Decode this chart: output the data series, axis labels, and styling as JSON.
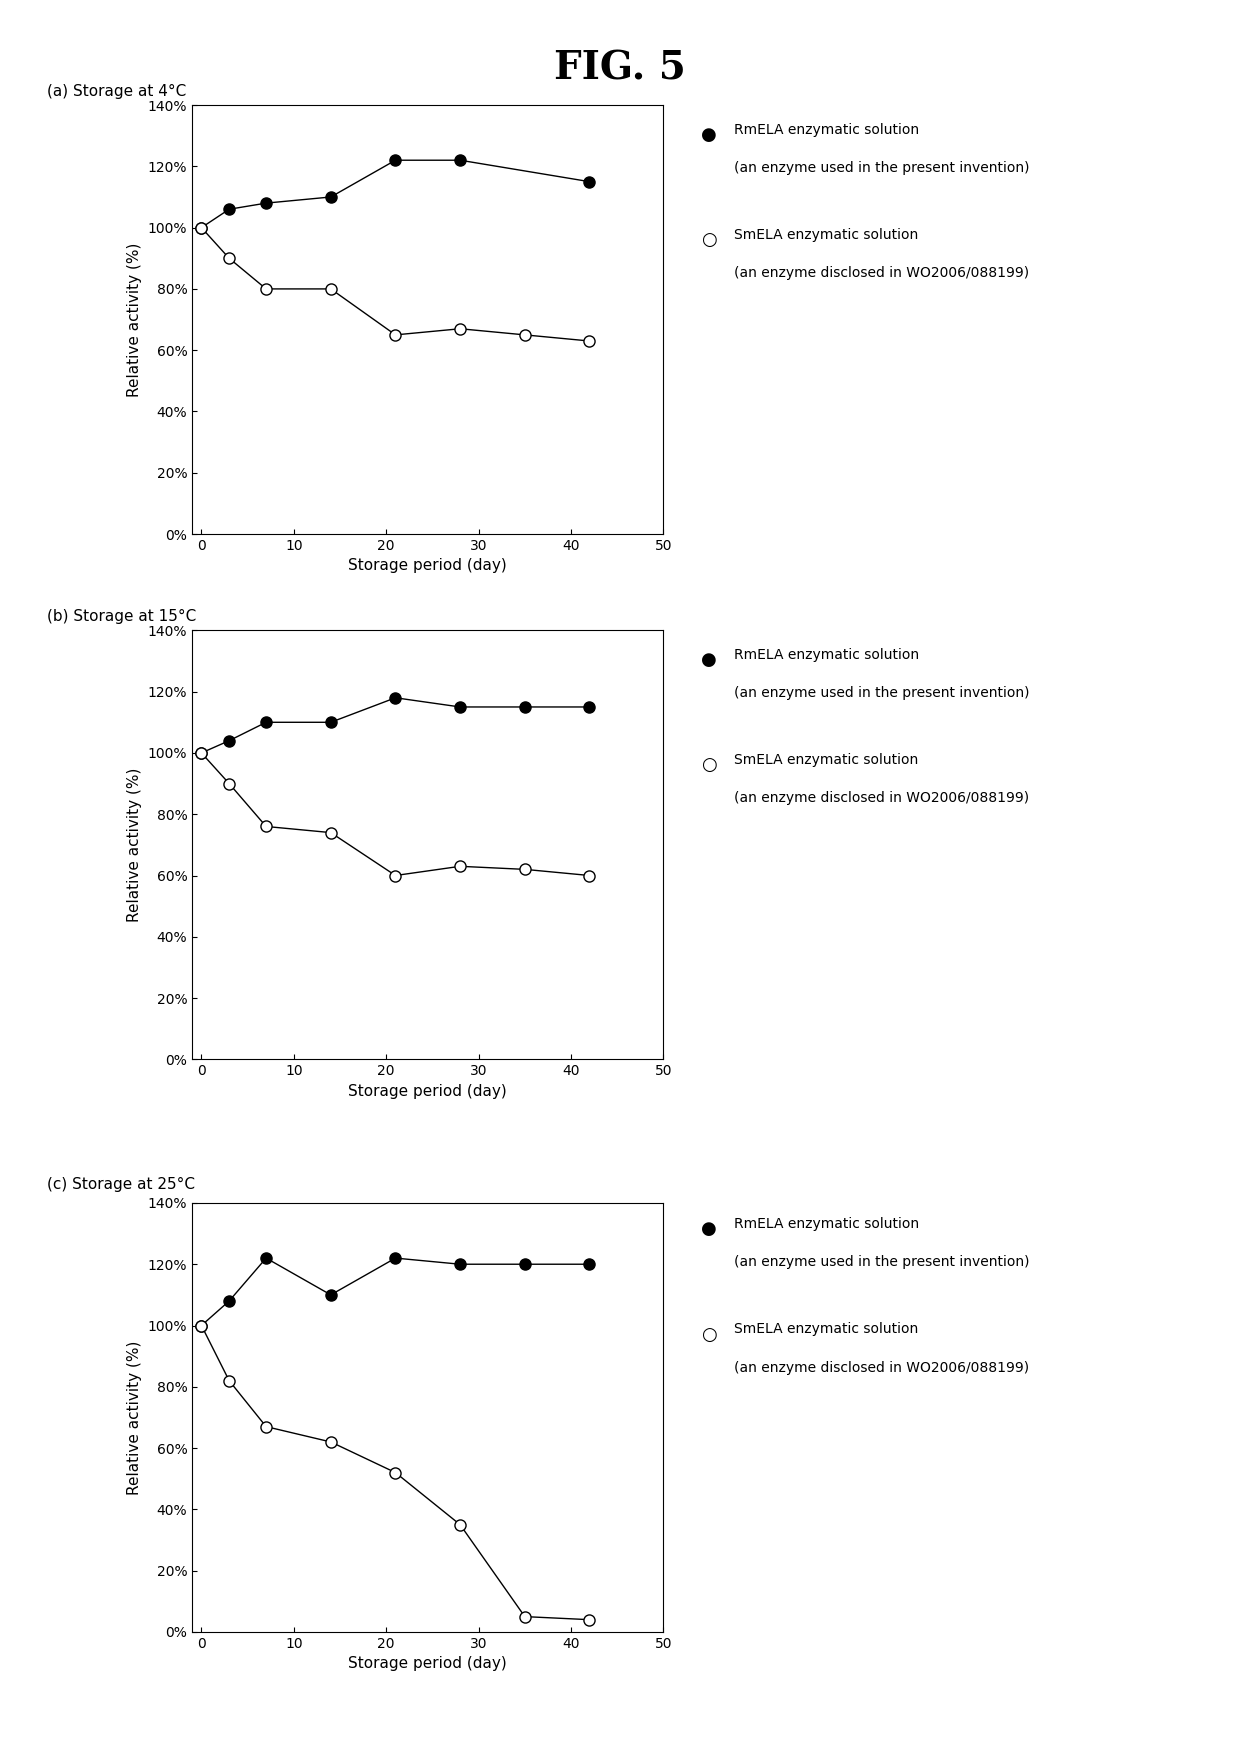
{
  "title": "FIG. 5",
  "subplots": [
    {
      "label": "(a) Storage at 4°C",
      "rm_x": [
        0,
        3,
        7,
        14,
        21,
        28,
        42
      ],
      "rm_y": [
        100,
        106,
        108,
        110,
        122,
        122,
        115
      ],
      "sm_x": [
        0,
        3,
        7,
        14,
        21,
        28,
        35,
        42
      ],
      "sm_y": [
        100,
        90,
        80,
        80,
        65,
        67,
        65,
        63
      ]
    },
    {
      "label": "(b) Storage at 15°C",
      "rm_x": [
        0,
        3,
        7,
        14,
        21,
        28,
        35,
        42
      ],
      "rm_y": [
        100,
        104,
        110,
        110,
        118,
        115,
        115,
        115
      ],
      "sm_x": [
        0,
        3,
        7,
        14,
        21,
        28,
        35,
        42
      ],
      "sm_y": [
        100,
        90,
        76,
        74,
        60,
        63,
        62,
        60
      ]
    },
    {
      "label": "(c) Storage at 25°C",
      "rm_x": [
        0,
        3,
        7,
        14,
        21,
        28,
        35,
        42
      ],
      "rm_y": [
        100,
        108,
        122,
        110,
        122,
        120,
        120,
        120
      ],
      "sm_x": [
        0,
        3,
        7,
        14,
        21,
        28,
        35,
        42
      ],
      "sm_y": [
        100,
        82,
        67,
        62,
        52,
        35,
        5,
        4
      ]
    }
  ],
  "legend_rm_label1": "RmELA enzymatic solution",
  "legend_rm_label2": "(an enzyme used in the present invention)",
  "legend_sm_label1": "SmELA enzymatic solution",
  "legend_sm_label2": "(an enzyme disclosed in WO2006/088199)",
  "xlabel": "Storage period (day)",
  "ylabel": "Relative activity (%)",
  "xlim": [
    -1,
    50
  ],
  "ylim": [
    0,
    140
  ],
  "yticks": [
    0,
    20,
    40,
    60,
    80,
    100,
    120,
    140
  ],
  "xticks": [
    0,
    10,
    20,
    30,
    40,
    50
  ],
  "background": "#ffffff",
  "line_color": "#000000"
}
